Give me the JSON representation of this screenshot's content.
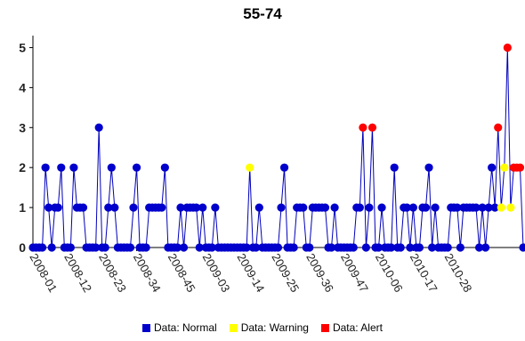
{
  "chart_data": {
    "type": "line",
    "title": "55-74",
    "xlabel": "",
    "ylabel": "",
    "ylim": [
      0,
      5.3
    ],
    "yticks": [
      0,
      1,
      2,
      3,
      4,
      5
    ],
    "xtick_labels": [
      "2008-01",
      "2008-12",
      "2008-23",
      "2008-34",
      "2008-45",
      "2009-03",
      "2009-14",
      "2009-25",
      "2009-36",
      "2009-47",
      "2010-06",
      "2010-17",
      "2010-28"
    ],
    "xtick_index": [
      0,
      11,
      22,
      33,
      44,
      55,
      66,
      77,
      88,
      99,
      110,
      121,
      132
    ],
    "line_color": "#0000bb",
    "grid": false,
    "legend_position": "bottom",
    "series": [
      {
        "name": "Data: Normal",
        "color": "#0000cc"
      },
      {
        "name": "Data: Warning",
        "color": "#ffff00"
      },
      {
        "name": "Data: Alert",
        "color": "#ff0000"
      }
    ],
    "values": [
      0,
      0,
      0,
      0,
      2,
      1,
      0,
      1,
      1,
      2,
      0,
      0,
      0,
      2,
      1,
      1,
      1,
      0,
      0,
      0,
      0,
      3,
      0,
      0,
      1,
      2,
      1,
      0,
      0,
      0,
      0,
      0,
      1,
      2,
      0,
      0,
      0,
      1,
      1,
      1,
      1,
      1,
      2,
      0,
      0,
      0,
      0,
      1,
      0,
      1,
      1,
      1,
      1,
      0,
      1,
      0,
      0,
      0,
      1,
      0,
      0,
      0,
      0,
      0,
      0,
      0,
      0,
      0,
      0,
      2,
      0,
      0,
      1,
      0,
      0,
      0,
      0,
      0,
      0,
      1,
      2,
      0,
      0,
      0,
      1,
      1,
      1,
      0,
      0,
      1,
      1,
      1,
      1,
      1,
      0,
      0,
      1,
      0,
      0,
      0,
      0,
      0,
      0,
      1,
      1,
      3,
      0,
      1,
      3,
      0,
      0,
      1,
      0,
      0,
      0,
      2,
      0,
      0,
      1,
      1,
      0,
      1,
      0,
      0,
      1,
      1,
      2,
      0,
      1,
      0,
      0,
      0,
      0,
      1,
      1,
      1,
      0,
      1,
      1,
      1,
      1,
      1,
      0,
      1,
      0,
      1,
      2,
      1,
      3,
      1,
      2,
      5,
      1,
      2,
      2,
      2,
      0
    ],
    "flags": [
      "N",
      "N",
      "N",
      "N",
      "N",
      "N",
      "N",
      "N",
      "N",
      "N",
      "N",
      "N",
      "N",
      "N",
      "N",
      "N",
      "N",
      "N",
      "N",
      "N",
      "N",
      "N",
      "N",
      "N",
      "N",
      "N",
      "N",
      "N",
      "N",
      "N",
      "N",
      "N",
      "N",
      "N",
      "N",
      "N",
      "N",
      "N",
      "N",
      "N",
      "N",
      "N",
      "N",
      "N",
      "N",
      "N",
      "N",
      "N",
      "N",
      "N",
      "N",
      "N",
      "N",
      "N",
      "N",
      "N",
      "N",
      "N",
      "N",
      "N",
      "N",
      "N",
      "N",
      "N",
      "N",
      "N",
      "N",
      "N",
      "N",
      "W",
      "N",
      "N",
      "N",
      "N",
      "N",
      "N",
      "N",
      "N",
      "N",
      "N",
      "N",
      "N",
      "N",
      "N",
      "N",
      "N",
      "N",
      "N",
      "N",
      "N",
      "N",
      "N",
      "N",
      "N",
      "N",
      "N",
      "N",
      "N",
      "N",
      "N",
      "N",
      "N",
      "N",
      "N",
      "N",
      "A",
      "N",
      "N",
      "A",
      "N",
      "N",
      "N",
      "N",
      "N",
      "N",
      "N",
      "N",
      "N",
      "N",
      "N",
      "N",
      "N",
      "N",
      "N",
      "N",
      "N",
      "N",
      "N",
      "N",
      "N",
      "N",
      "N",
      "N",
      "N",
      "N",
      "N",
      "N",
      "N",
      "N",
      "N",
      "N",
      "N",
      "N",
      "N",
      "N",
      "N",
      "N",
      "N",
      "A",
      "W",
      "W",
      "A",
      "W",
      "A",
      "A",
      "A",
      "N"
    ]
  }
}
